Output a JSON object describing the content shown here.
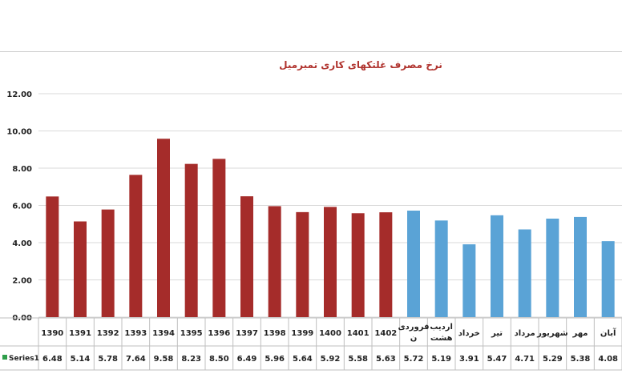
{
  "chart_data": {
    "type": "bar",
    "title": "نرخ مصرف غلتکهای کاری تمبرمیل",
    "ylabel": "",
    "ylim": [
      0,
      12
    ],
    "yticks": [
      "0.00",
      "2.00",
      "4.00",
      "6.00",
      "8.00",
      "10.00",
      "12.00"
    ],
    "grid": true,
    "categories": [
      [
        "1390"
      ],
      [
        "1391"
      ],
      [
        "1392"
      ],
      [
        "1393"
      ],
      [
        "1394"
      ],
      [
        "1395"
      ],
      [
        "1396"
      ],
      [
        "1397"
      ],
      [
        "1398"
      ],
      [
        "1399"
      ],
      [
        "1400"
      ],
      [
        "1401"
      ],
      [
        "1402"
      ],
      [
        "فروردی",
        "ن"
      ],
      [
        "اردیب",
        "هشت"
      ],
      [
        "خرداد"
      ],
      [
        "تیر"
      ],
      [
        "مرداد"
      ],
      [
        "شهریور"
      ],
      [
        "مهر"
      ],
      [
        "آبان"
      ]
    ],
    "value_labels": [
      "6.48",
      "5.14",
      "5.78",
      "7.64",
      "9.58",
      "8.23",
      "8.50",
      "6.49",
      "5.96",
      "5.64",
      "5.92",
      "5.58",
      "5.63",
      "5.72",
      "5.19",
      "3.91",
      "5.47",
      "4.71",
      "5.29",
      "5.38",
      "4.08"
    ],
    "series": [
      {
        "name": "Series1",
        "values": [
          6.48,
          5.14,
          5.78,
          7.64,
          9.58,
          8.23,
          8.5,
          6.49,
          5.96,
          5.64,
          5.92,
          5.58,
          5.63,
          5.72,
          5.19,
          3.91,
          5.47,
          4.71,
          5.29,
          5.38,
          4.08
        ]
      }
    ],
    "colors": {
      "years": "#a52c2a",
      "months": "#5aa3d6",
      "legend_marker": "#2e9e4a",
      "grid": "#d9d9d9",
      "table_border": "#bfbfbf"
    },
    "color_split_index": 13
  }
}
